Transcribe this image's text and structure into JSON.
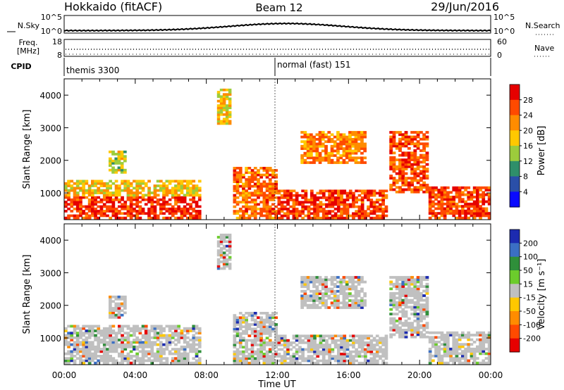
{
  "header": {
    "title_left": "Hokkaido (fitACF)",
    "title_center": "Beam 12",
    "title_right": "29/Jun/2016"
  },
  "strips": {
    "nsky_label": "N.Sky",
    "nsky_ticks": [
      "10^5",
      "10^0"
    ],
    "nsearch_label": "N.Search",
    "nsearch_ticks": [
      "10^5",
      "10^0"
    ],
    "freq_label": "Freq.",
    "freq_unit": "[MHz]",
    "freq_ticks": [
      "18",
      "8"
    ],
    "nave_label": "Nave",
    "nave_ticks": [
      "60",
      "0"
    ],
    "cpid_label": "CPID",
    "cpid_segments": [
      "themis 3300",
      "normal (fast) 151"
    ]
  },
  "chart_data": [
    {
      "type": "heatmap",
      "panel": "power",
      "ylabel": "Slant Range [km]",
      "ylim": [
        180,
        4500
      ],
      "yticks": [
        "1000",
        "2000",
        "3000",
        "4000"
      ],
      "colorbar_label": "Power [dB]",
      "colorbar_ticks": [
        "28",
        "24",
        "20",
        "16",
        "12",
        "8",
        "4"
      ],
      "colorbar_colors": [
        "#e60000",
        "#ff4a00",
        "#ff8c00",
        "#ffc800",
        "#9ccc3c",
        "#2f8f6a",
        "#2a4fa8",
        "#0a0aff"
      ],
      "x": [
        "00:00",
        "04:00",
        "08:00",
        "12:00",
        "16:00",
        "20:00",
        "00:00"
      ],
      "regions": [
        {
          "t": [
            0,
            7.7
          ],
          "r": [
            200,
            900
          ],
          "level": 26
        },
        {
          "t": [
            0,
            7.7
          ],
          "r": [
            900,
            1400
          ],
          "level": 17
        },
        {
          "t": [
            2.5,
            3.5
          ],
          "r": [
            1600,
            2300
          ],
          "level": 14
        },
        {
          "t": [
            8.6,
            9.4
          ],
          "r": [
            3100,
            4200
          ],
          "level": 16
        },
        {
          "t": [
            9.5,
            12
          ],
          "r": [
            200,
            1800
          ],
          "level": 22
        },
        {
          "t": [
            12,
            18.2
          ],
          "r": [
            200,
            1100
          ],
          "level": 25
        },
        {
          "t": [
            13.3,
            17.0
          ],
          "r": [
            1900,
            2900
          ],
          "level": 21
        },
        {
          "t": [
            18.3,
            20.5
          ],
          "r": [
            1000,
            2900
          ],
          "level": 24
        },
        {
          "t": [
            20.5,
            24
          ],
          "r": [
            200,
            1200
          ],
          "level": 25
        }
      ]
    },
    {
      "type": "heatmap",
      "panel": "velocity",
      "ylabel": "Slant Range [km]",
      "xlabel": "Time UT",
      "ylim": [
        180,
        4500
      ],
      "yticks": [
        "1000",
        "2000",
        "3000",
        "4000"
      ],
      "colorbar_label": "Velocity [m s⁻¹]",
      "colorbar_ticks": [
        "200",
        "100",
        "50",
        "15",
        "-15",
        "-50",
        "-100",
        "-200"
      ],
      "colorbar_colors": [
        "#1c2bb0",
        "#3b6fc4",
        "#2f8f3a",
        "#6ccc2c",
        "#c0c0c0",
        "#ffc800",
        "#ff8c00",
        "#ff4a00",
        "#e60000"
      ],
      "x": [
        "00:00",
        "04:00",
        "08:00",
        "12:00",
        "16:00",
        "20:00",
        "00:00"
      ],
      "regions": [
        {
          "t": [
            0,
            7.7
          ],
          "r": [
            200,
            1400
          ],
          "level": 0
        },
        {
          "t": [
            2.5,
            3.5
          ],
          "r": [
            1600,
            2300
          ],
          "level": 0
        },
        {
          "t": [
            8.6,
            9.4
          ],
          "r": [
            3100,
            4200
          ],
          "level": 0
        },
        {
          "t": [
            9.5,
            12
          ],
          "r": [
            200,
            1800
          ],
          "level": 0
        },
        {
          "t": [
            12,
            18.2
          ],
          "r": [
            200,
            1100
          ],
          "level": 0
        },
        {
          "t": [
            13.3,
            17.0
          ],
          "r": [
            1900,
            2900
          ],
          "level": 0
        },
        {
          "t": [
            18.3,
            20.5
          ],
          "r": [
            1000,
            2900
          ],
          "level": 0
        },
        {
          "t": [
            20.5,
            24
          ],
          "r": [
            200,
            1200
          ],
          "level": 0
        }
      ]
    }
  ]
}
